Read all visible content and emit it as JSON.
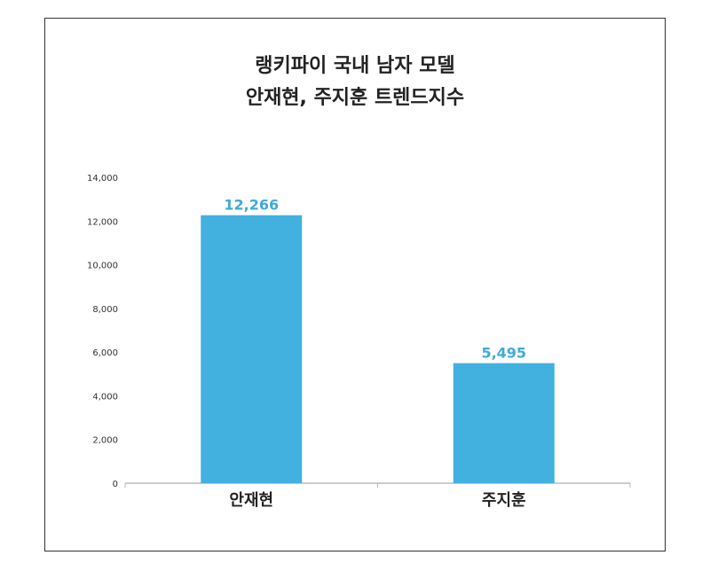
{
  "title_line1": "랭키파이 국내 남자 모델",
  "title_line2": "안재현, 주지훈 트렌드지수",
  "chart_data": {
    "type": "bar",
    "title": "랭키파이 국내 남자 모델 안재현, 주지훈 트렌드지수",
    "categories": [
      "안재현",
      "주지훈"
    ],
    "values": [
      12266,
      5495
    ],
    "value_labels": [
      "12,266",
      "5,495"
    ],
    "ylim": [
      0,
      14000
    ],
    "yticks": [
      0,
      2000,
      4000,
      6000,
      8000,
      10000,
      12000,
      14000
    ],
    "ytick_labels": [
      "0",
      "2,000",
      "4,000",
      "6,000",
      "8,000",
      "10,000",
      "12,000",
      "14,000"
    ],
    "bar_color": "#42b1e0",
    "label_color": "#3fa9d9",
    "grid": false,
    "legend": "none"
  }
}
